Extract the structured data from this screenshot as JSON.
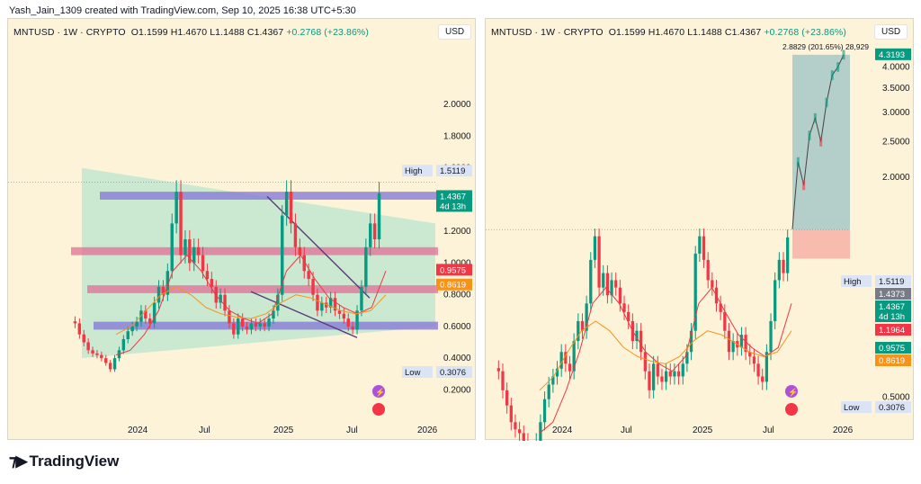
{
  "header": {
    "attribution": "Yash_Jain_1309 created with TradingView.com, Sep 10, 2025 16:38 UTC+5:30"
  },
  "legend": {
    "symbol": "MNTUSD · 1W · CRYPTO",
    "open": "O1.1599",
    "high": "H1.4670",
    "low": "L1.1488",
    "close": "C1.4367",
    "change": "+0.2768 (+23.86%)"
  },
  "currency": "USD",
  "brand": {
    "name": "TradingView"
  },
  "colors": {
    "background": "#fdf3d8",
    "up": "#089981",
    "down": "#f23645",
    "triangle": "#b9e6cf",
    "zone_purple": "#9b8fd9",
    "zone_pink": "#e87b9e",
    "projection": "#8fc7cc"
  },
  "chart_data": [
    {
      "type": "candlestick",
      "panel": "left",
      "price_scale": "linear",
      "ylim": [
        0.1,
        2.2
      ],
      "y_ticks": [
        "2.0000",
        "1.8000",
        "1.6000",
        "1.2000",
        "1.0000",
        "0.8000",
        "0.6000",
        "0.4000",
        "0.2000"
      ],
      "x_ticks": [
        "2024",
        "Jul",
        "2025",
        "Jul",
        "2026"
      ],
      "price_labels": [
        {
          "label": "High",
          "value": "1.5119"
        },
        {
          "value": "1.4367",
          "sub": "4d 13h",
          "color": "#089981"
        },
        {
          "value": "0.9575",
          "color": "#f23645"
        },
        {
          "value": "0.8619",
          "color": "#f7931a"
        },
        {
          "label": "Low",
          "value": "0.3076"
        }
      ],
      "horizontal_zones": [
        {
          "from": 1.4,
          "to": 1.45,
          "color": "purple"
        },
        {
          "from": 1.05,
          "to": 1.1,
          "color": "pink"
        },
        {
          "from": 0.81,
          "to": 0.86,
          "color": "pink"
        },
        {
          "from": 0.58,
          "to": 0.63,
          "color": "purple"
        }
      ],
      "series": [
        {
          "kind": "ohlc_close",
          "values": [
            0.62,
            0.55,
            0.5,
            0.45,
            0.43,
            0.42,
            0.4,
            0.37,
            0.33,
            0.4,
            0.45,
            0.52,
            0.57,
            0.6,
            0.63,
            0.7,
            0.65,
            0.62,
            0.75,
            0.85,
            0.8,
            0.95,
            1.25,
            1.45,
            1.05,
            1.15,
            1.0,
            1.1,
            1.05,
            0.95,
            0.9,
            0.85,
            0.75,
            0.8,
            0.7,
            0.62,
            0.55,
            0.65,
            0.6,
            0.58,
            0.62,
            0.6,
            0.62,
            0.6,
            0.65,
            0.7,
            0.8,
            1.3,
            1.45,
            1.25,
            1.1,
            1.05,
            0.95,
            0.9,
            0.8,
            0.7,
            0.75,
            0.72,
            0.78,
            0.7,
            0.68,
            0.65,
            0.6,
            0.58,
            0.7,
            0.85,
            1.1,
            1.25,
            1.15,
            1.44
          ]
        },
        {
          "kind": "moving_average",
          "color": "#f23645",
          "values": [
            0.42,
            0.45,
            0.55,
            0.7,
            0.95,
            1.05,
            0.95,
            0.8,
            0.7,
            0.65,
            0.62,
            0.68,
            0.95,
            1.05,
            0.9,
            0.78,
            0.72,
            0.68,
            0.72,
            0.95
          ]
        },
        {
          "kind": "moving_average",
          "color": "#f7931a",
          "values": [
            0.55,
            0.6,
            0.7,
            0.8,
            0.85,
            0.8,
            0.72,
            0.68,
            0.66,
            0.65,
            0.68,
            0.75,
            0.8,
            0.78,
            0.74,
            0.7,
            0.68,
            0.7,
            0.8
          ]
        }
      ]
    },
    {
      "type": "candlestick",
      "panel": "right",
      "price_scale": "log",
      "ylim": [
        0.4,
        5.0
      ],
      "y_ticks": [
        "4.0000",
        "3.5000",
        "3.0000",
        "2.5000",
        "2.0000",
        "0.5000"
      ],
      "x_ticks": [
        "2024",
        "Jul",
        "2025",
        "Jul",
        "2026"
      ],
      "measure_label": "2.8829 (201.65%) 28,929",
      "price_labels": [
        {
          "value": "4.3193",
          "color": "#089981"
        },
        {
          "label": "High",
          "value": "1.5119"
        },
        {
          "value": "1.4373",
          "color": "#787b86"
        },
        {
          "value": "1.4367",
          "sub": "4d 13h",
          "color": "#089981"
        },
        {
          "value": "1.1964",
          "color": "#f23645"
        },
        {
          "value": "0.9575",
          "color": "#089981"
        },
        {
          "value": "0.8619",
          "color": "#f7931a"
        },
        {
          "label": "Low",
          "value": "0.3076"
        }
      ],
      "projection": {
        "start_price": 1.4367,
        "target_price": 4.3193,
        "stop_price": 1.1964,
        "path": [
          1.44,
          2.2,
          1.9,
          2.6,
          2.9,
          2.5,
          3.2,
          3.8,
          4.0,
          4.32
        ]
      }
    }
  ]
}
